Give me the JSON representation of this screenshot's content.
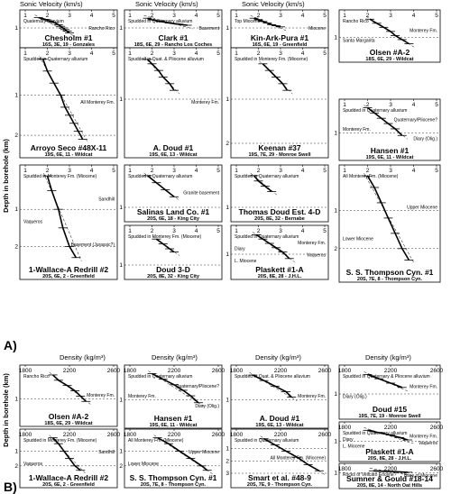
{
  "figure": {
    "section_a_label": "A)",
    "section_b_label": "B)",
    "ylabel": "Depth in borehole (km)",
    "a_xlabel": "Sonic Velocity (km/s)",
    "b_xlabel": "Density (kg/m³)"
  },
  "chart_data": [
    {
      "type": "line",
      "section": "A",
      "name": "Chesholm #1",
      "location": "16S, 3E, 19 - Gonzales",
      "xlim": [
        1,
        5
      ],
      "ylim": [
        0,
        1.5
      ],
      "xticks": [
        "1",
        "2",
        "3",
        "4",
        "5"
      ],
      "yticks": [
        "1"
      ],
      "annotations": [
        "Quaternary alluvium",
        "Rancho Rico"
      ],
      "profile": {
        "x": [
          1.6,
          1.9,
          2.1,
          2.3,
          2.5,
          2.6,
          2.7,
          2.8,
          2.9,
          3.0
        ],
        "y": [
          0.05,
          0.2,
          0.35,
          0.5,
          0.7,
          0.85,
          1.0,
          1.15,
          1.3,
          1.45
        ]
      }
    },
    {
      "type": "line",
      "section": "A",
      "name": "Clark #1",
      "location": "18S, 6E, 29 - Rancho Los Coches",
      "xlim": [
        1,
        5
      ],
      "ylim": [
        0,
        1.5
      ],
      "xticks": [
        "1",
        "2",
        "3",
        "4",
        "5"
      ],
      "yticks": [
        "1"
      ],
      "annotations": [
        "Spudded in Quaternary alluvium",
        "Basement"
      ],
      "profile": {
        "x": [
          1.8,
          2.0,
          2.4,
          2.8,
          3.2,
          3.6
        ],
        "y": [
          0.1,
          0.25,
          0.4,
          0.55,
          0.65,
          0.75
        ]
      }
    },
    {
      "type": "line",
      "section": "A",
      "name": "Kin-Ark-Pura #1",
      "location": "16S, 6E, 19 - Greenfield",
      "xlim": [
        1,
        5
      ],
      "ylim": [
        0,
        1.5
      ],
      "xticks": [
        "1",
        "2",
        "3",
        "4",
        "5"
      ],
      "yticks": [
        "1"
      ],
      "annotations": [
        "Top Miocene?",
        "Miocene"
      ],
      "profile": {
        "x": [
          1.8,
          2.0,
          2.2,
          2.4,
          2.6,
          2.8,
          3.0
        ],
        "y": [
          0.1,
          0.25,
          0.4,
          0.55,
          0.7,
          0.8,
          0.9
        ]
      }
    },
    {
      "type": "line",
      "section": "A",
      "name": "Olsen #A-2",
      "location": "18S, 6E, 29 - Wildcat",
      "xlim": [
        1,
        5
      ],
      "ylim": [
        0,
        1.5
      ],
      "xticks": [
        "1",
        "2",
        "3",
        "4",
        "5"
      ],
      "yticks": [
        "1"
      ],
      "annotations": [
        "Rancho Rico",
        "Monterey Fm.",
        "Santa Margarita"
      ],
      "profile": {
        "x": [
          2.1,
          2.4,
          2.7,
          3.0,
          3.2,
          3.5,
          3.8
        ],
        "y": [
          0.1,
          0.3,
          0.5,
          0.7,
          0.9,
          1.1,
          1.3
        ]
      }
    },
    {
      "type": "line",
      "section": "A",
      "name": "Arroyo Seco #48X-11",
      "location": "19S, 6E, 11 - Wildcat",
      "xlim": [
        1,
        5
      ],
      "ylim": [
        0,
        2.2
      ],
      "xticks": [
        "1",
        "2",
        "3",
        "4",
        "5"
      ],
      "yticks": [
        "1",
        "2"
      ],
      "annotations": [
        "Spudded in Quaternary alluvium",
        "All Monterey Fm."
      ],
      "profile": {
        "x": [
          1.8,
          2.0,
          2.3,
          2.6,
          2.8,
          3.0,
          3.2,
          3.4,
          3.6
        ],
        "y": [
          0.1,
          0.4,
          0.7,
          1.0,
          1.3,
          1.5,
          1.7,
          1.9,
          2.1
        ]
      }
    },
    {
      "type": "line",
      "section": "A",
      "name": "A. Doud #1",
      "location": "19S, 6E, 13 - Wildcat",
      "xlim": [
        1,
        5
      ],
      "ylim": [
        0,
        2
      ],
      "xticks": [
        "1",
        "2",
        "3",
        "4",
        "5"
      ],
      "yticks": [
        "1"
      ],
      "annotations": [
        "Spudded in Quat. & Pliocene alluvium",
        "Monterey Fm."
      ],
      "profile": {
        "x": [
          1.8,
          2.0,
          2.3,
          2.5,
          2.8,
          3.0
        ],
        "y": [
          0.1,
          0.2,
          0.35,
          0.5,
          0.65,
          0.8
        ]
      }
    },
    {
      "type": "line",
      "section": "A",
      "name": "Keenan #37",
      "location": "19S, 7E, 29 - Monroe Swell",
      "xlim": [
        1,
        5
      ],
      "ylim": [
        0,
        2
      ],
      "xticks": [
        "1",
        "2",
        "3",
        "4",
        "5"
      ],
      "yticks": [
        "1",
        "2"
      ],
      "annotations": [
        "Spudded in Monterey Fm. (Miocene)"
      ],
      "profile": {
        "x": [
          2.2,
          2.5,
          2.8,
          3.1,
          3.3
        ],
        "y": [
          0.2,
          0.35,
          0.5,
          0.65,
          0.8
        ]
      }
    },
    {
      "type": "line",
      "section": "A",
      "name": "Hansen #1",
      "location": "19S, 6E, 11 - Wildcat",
      "xlim": [
        1,
        5
      ],
      "ylim": [
        0,
        1.5
      ],
      "xticks": [
        "1",
        "2",
        "3",
        "4",
        "5"
      ],
      "yticks": [
        "1"
      ],
      "annotations": [
        "Spudded in Quaternary alluvium",
        "Quaternary/Pliocene?",
        "Monterey Fm.",
        "Diary (Olig.)"
      ],
      "profile": {
        "x": [
          2.0,
          2.3,
          2.6,
          2.9,
          3.2,
          3.5
        ],
        "y": [
          0.05,
          0.25,
          0.45,
          0.65,
          0.85,
          1.1
        ]
      }
    },
    {
      "type": "line",
      "section": "A",
      "name": "1-Wallace-A Redrill #2",
      "location": "20S, 6E, 2 - Greenfield",
      "xlim": [
        1,
        5
      ],
      "ylim": [
        0,
        2.5
      ],
      "xticks": [
        "1",
        "2",
        "3",
        "4",
        "5"
      ],
      "yticks": [
        "1",
        "2"
      ],
      "annotations": [
        "Spudded in Monterey Fm. (Miocene)",
        "Sandhill",
        "Vaqueros",
        "Basement (Jurassic?)"
      ],
      "profile": {
        "x": [
          2.0,
          2.2,
          2.5,
          2.7,
          3.0,
          3.3
        ],
        "y": [
          0.1,
          0.5,
          1.0,
          1.5,
          2.0,
          2.3
        ]
      }
    },
    {
      "type": "line",
      "section": "A",
      "name": "Salinas Land Co. #1",
      "location": "20S, 6E, 18 - King City",
      "xlim": [
        1,
        5
      ],
      "ylim": [
        0,
        1
      ],
      "xticks": [
        "1",
        "2",
        "3",
        "4",
        "5"
      ],
      "yticks": [
        "1"
      ],
      "annotations": [
        "Spudded in Quaternary alluvium",
        "Granite basement"
      ],
      "profile": {
        "x": [
          1.8,
          2.2,
          2.6,
          3.0
        ],
        "y": [
          0.1,
          0.3,
          0.5,
          0.7
        ]
      }
    },
    {
      "type": "line",
      "section": "A",
      "name": "Doud 3-D",
      "location": "20S, 8E, 32 - King City",
      "xlim": [
        1,
        5
      ],
      "ylim": [
        0,
        1
      ],
      "xticks": [
        "1",
        "2",
        "3",
        "4",
        "5"
      ],
      "yticks": [
        "1"
      ],
      "annotations": [
        "Spudded in Monterey Fm. (Miocene)"
      ],
      "profile": {
        "x": [
          2.2,
          2.5,
          2.8,
          3.0
        ],
        "y": [
          0.2,
          0.35,
          0.5,
          0.6
        ]
      }
    },
    {
      "type": "line",
      "section": "A",
      "name": "S. S. Thompson Cyn. #1",
      "location": "20S, 7E, 8 - Thompson Cyn.",
      "xlim": [
        1,
        5
      ],
      "ylim": [
        0,
        2.5
      ],
      "xticks": [
        "1",
        "2",
        "3",
        "4",
        "5"
      ],
      "yticks": [
        "1",
        "2"
      ],
      "annotations": [
        "All Monterey Fm. (Miocene)",
        "Upper Miocene",
        "Lower Miocene"
      ],
      "profile": {
        "x": [
          2.0,
          2.3,
          2.6,
          2.9,
          3.2,
          3.5,
          3.8
        ],
        "y": [
          0.1,
          0.4,
          0.8,
          1.2,
          1.6,
          2.0,
          2.3
        ]
      }
    },
    {
      "type": "line",
      "section": "A",
      "name": "Plaskett #1-A",
      "location": "20S, 8E, 28 - J.H.L.",
      "xlim": [
        1,
        5
      ],
      "ylim": [
        0,
        1.5
      ],
      "xticks": [
        "1",
        "2",
        "3",
        "4",
        "5"
      ],
      "yticks": [
        "1"
      ],
      "annotations": [
        "Spudded in Quaternary alluvium",
        "Monterey Fm.",
        "Diary",
        "Vaqueros",
        "L. Miocene"
      ],
      "profile": {
        "x": [
          1.9,
          2.2,
          2.5,
          2.8,
          3.1,
          3.4
        ],
        "y": [
          0.1,
          0.3,
          0.5,
          0.7,
          0.9,
          1.2
        ]
      }
    },
    {
      "type": "line",
      "section": "A",
      "name": "Thomas Doud Est. 4-D",
      "location": "20S, 8E, 32 - Bernabe",
      "xlim": [
        1,
        5
      ],
      "ylim": [
        0,
        1
      ],
      "xticks": [
        "1",
        "2",
        "3",
        "4",
        "5"
      ],
      "yticks": [
        "1"
      ],
      "annotations": [
        "Spudded in Quaternary alluvium"
      ],
      "profile": {
        "x": [
          1.8,
          2.0,
          2.3,
          2.6
        ],
        "y": [
          0.1,
          0.25,
          0.4,
          0.55
        ]
      }
    },
    {
      "type": "line",
      "section": "B",
      "name": "Olsen #A-2",
      "location": "18S, 6E, 29 - Wildcat",
      "xlim": [
        1800,
        2600
      ],
      "ylim": [
        0,
        1.5
      ],
      "xticks": [
        "1800",
        "2200",
        "2600"
      ],
      "yticks": [
        "1"
      ],
      "annotations": [
        "Rancho Rico",
        "Monterey Fm."
      ],
      "profile": {
        "x": [
          2050,
          2100,
          2180,
          2250,
          2300,
          2350
        ],
        "y": [
          0.1,
          0.3,
          0.5,
          0.7,
          0.9,
          1.1
        ]
      }
    },
    {
      "type": "line",
      "section": "B",
      "name": "Hansen #1",
      "location": "19S, 6E, 11 - Wildcat",
      "xlim": [
        1800,
        2600
      ],
      "ylim": [
        0,
        1.5
      ],
      "xticks": [
        "1800",
        "2200",
        "2600"
      ],
      "yticks": [
        "1"
      ],
      "annotations": [
        "Spudded in Quaternary alluvium",
        "Quaternary/Pliocene?",
        "Monterey Fm.",
        "Diary (Olig.)"
      ],
      "profile": {
        "x": [
          2000,
          2100,
          2200,
          2280,
          2350,
          2420
        ],
        "y": [
          0.05,
          0.25,
          0.45,
          0.65,
          0.85,
          1.1
        ]
      }
    },
    {
      "type": "line",
      "section": "B",
      "name": "A. Doud #1",
      "location": "19S, 6E, 13 - Wildcat",
      "xlim": [
        1800,
        2600
      ],
      "ylim": [
        0,
        1.5
      ],
      "xticks": [
        "1800",
        "2200",
        "2600"
      ],
      "yticks": [
        "1"
      ],
      "annotations": [
        "Spudded in Quat. & Pliocene alluvium",
        "Monterey Fm."
      ],
      "profile": {
        "x": [
          1950,
          2050,
          2150,
          2250,
          2300
        ],
        "y": [
          0.1,
          0.3,
          0.5,
          0.7,
          0.9
        ]
      }
    },
    {
      "type": "line",
      "section": "B",
      "name": "Doud #15",
      "location": "19S, 7E, 19 - Monroe Swell",
      "xlim": [
        1800,
        2600
      ],
      "ylim": [
        0,
        1.5
      ],
      "xticks": [
        "1800",
        "2200",
        "2600"
      ],
      "yticks": [
        "1"
      ],
      "annotations": [
        "Spudded in Quaternary & Pliocene alluvium",
        "Monterey Fm.",
        "Diary (Olig.)"
      ],
      "profile": {
        "x": [
          2000,
          2100,
          2200,
          2300
        ],
        "y": [
          0.1,
          0.3,
          0.5,
          0.7
        ]
      }
    },
    {
      "type": "line",
      "section": "B",
      "name": "1-Wallace-A Redrill #2",
      "location": "20S, 6E, 2 - Greenfield",
      "xlim": [
        1800,
        2600
      ],
      "ylim": [
        0,
        2.5
      ],
      "xticks": [
        "1800",
        "2200",
        "2600"
      ],
      "yticks": [
        "1",
        "2"
      ],
      "annotations": [
        "Spudded in Monterey Fm. (Miocene)",
        "Sandhill",
        "Vaqueros"
      ],
      "profile": {
        "x": [
          2050,
          2100,
          2150,
          2200,
          2250,
          2300
        ],
        "y": [
          0.1,
          0.5,
          1.0,
          1.5,
          2.0,
          2.3
        ]
      }
    },
    {
      "type": "line",
      "section": "B",
      "name": "S. S. Thompson Cyn. #1",
      "location": "20S, 7E, 8 - Thompson Cyn.",
      "xlim": [
        1800,
        2600
      ],
      "ylim": [
        0,
        2.5
      ],
      "xticks": [
        "1800",
        "2200",
        "2600"
      ],
      "yticks": [
        "1",
        "2"
      ],
      "annotations": [
        "All Monterey Fm. (Miocene)",
        "Upper Miocene",
        "Lower Miocene"
      ],
      "profile": {
        "x": [
          2050,
          2150,
          2250,
          2350,
          2450,
          2500
        ],
        "y": [
          0.1,
          0.5,
          1.0,
          1.5,
          2.0,
          2.3
        ]
      }
    },
    {
      "type": "line",
      "section": "B",
      "name": "Smart et al. #48-9",
      "location": "20S, 7E, 9 - Thompson Cyn.",
      "xlim": [
        1800,
        2600
      ],
      "ylim": [
        0,
        3
      ],
      "xticks": [
        "1800",
        "2200",
        "2600"
      ],
      "yticks": [
        "1",
        "2",
        "3"
      ],
      "annotations": [
        "Spudded in Quaternary alluvium",
        "All Monterey Fm. (Miocene)"
      ],
      "profile": {
        "x": [
          2050,
          2150,
          2250,
          2350,
          2450,
          2550
        ],
        "y": [
          0.2,
          0.7,
          1.2,
          1.7,
          2.3,
          2.8
        ]
      }
    },
    {
      "type": "line",
      "section": "B",
      "name": "Plaskett #1-A",
      "location": "20S, 8E, 28 - J.H.L.",
      "xlim": [
        1800,
        2600
      ],
      "ylim": [
        0,
        1.5
      ],
      "xticks": [
        "1800",
        "2200",
        "2600"
      ],
      "yticks": [
        "1"
      ],
      "annotations": [
        "Spudded in Quaternary alluvium",
        "Monterey Fm.",
        "Diary",
        "Vaqueros",
        "L. Miocene"
      ],
      "profile": {
        "x": [
          2000,
          2100,
          2200,
          2280,
          2350
        ],
        "y": [
          0.1,
          0.3,
          0.5,
          0.7,
          0.9
        ]
      }
    },
    {
      "type": "line",
      "section": "B",
      "name": "Sumner & Gould #18-14",
      "location": "20S, 8E, 14 - North Oat Hills",
      "xlim": [
        1800,
        2600
      ],
      "ylim": [
        0,
        1.5
      ],
      "xticks": [
        "1800",
        "2200",
        "2600"
      ],
      "yticks": [
        "1"
      ],
      "annotations": [
        "Rocks of Vellcato Eocene?",
        "Base of Miocene"
      ],
      "profile": {
        "x": [
          2050,
          2150,
          2250,
          2350
        ],
        "y": [
          0.1,
          0.3,
          0.5,
          0.7
        ]
      }
    }
  ]
}
